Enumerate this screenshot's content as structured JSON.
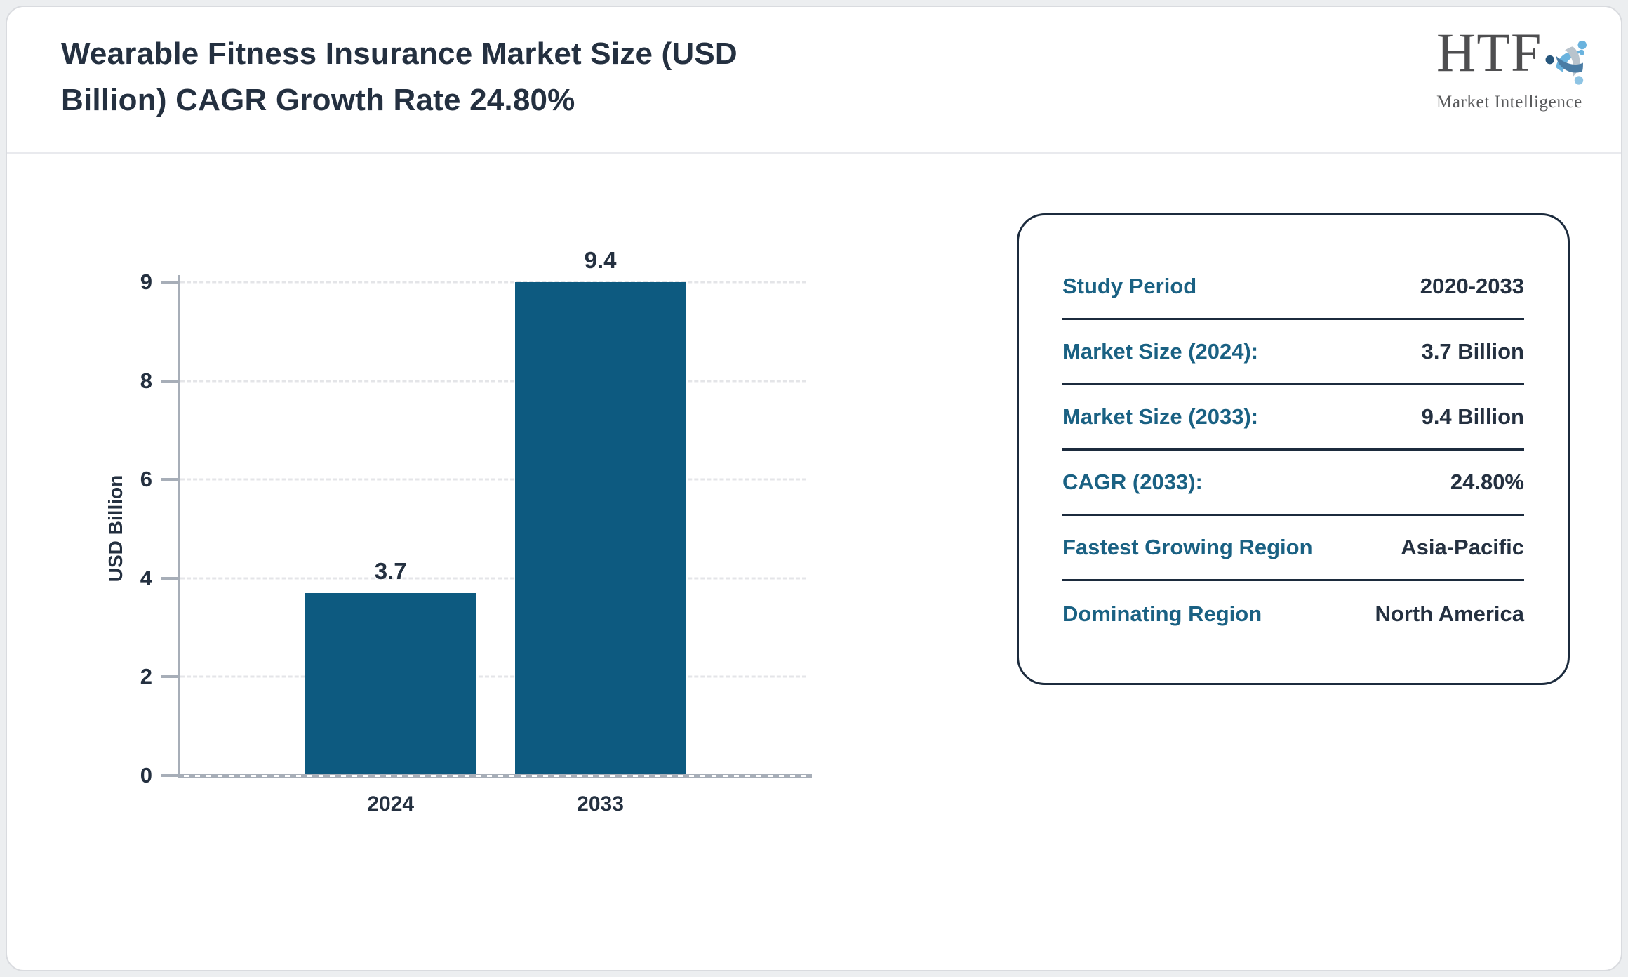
{
  "header": {
    "title_lines": [
      "Wearable Fitness Insurance Market Size (USD",
      "Billion) CAGR Growth Rate 24.80%"
    ],
    "logo": {
      "name": "HTF",
      "subtitle": "Market Intelligence"
    }
  },
  "chart_data": {
    "type": "bar",
    "title": "Wearable Fitness Insurance Market Size (USD Billion) CAGR Growth Rate 24.80%",
    "categories": [
      "2024",
      "2033"
    ],
    "values": [
      3.7,
      9.4
    ],
    "bar_labels": [
      "3.7",
      "9.4"
    ],
    "xlabel": "",
    "ylabel": "USD Billion",
    "y_ticks": [
      0,
      2,
      4,
      6,
      8,
      9
    ],
    "ylim": [
      0,
      9.4
    ],
    "grid": "horizontal-dashed",
    "legend": "none",
    "bar_color": "#0d5a80"
  },
  "info_panel": {
    "rows": [
      {
        "label": "Study Period",
        "value": "2020-2033"
      },
      {
        "label": "Market Size (2024):",
        "value": "3.7 Billion"
      },
      {
        "label": "Market Size (2033):",
        "value": "9.4 Billion"
      },
      {
        "label": "CAGR (2033):",
        "value": "24.80%"
      },
      {
        "label": "Fastest Growing Region",
        "value": "Asia-Pacific"
      },
      {
        "label": "Dominating Region",
        "value": "North America"
      }
    ]
  },
  "colors": {
    "bar": "#0d5a80",
    "label_teal": "#1a6183",
    "text_dark": "#243040",
    "axis_gray": "#a7aeb8",
    "grid_gray": "#e4e5e8",
    "panel_border": "#1c2b3d"
  }
}
